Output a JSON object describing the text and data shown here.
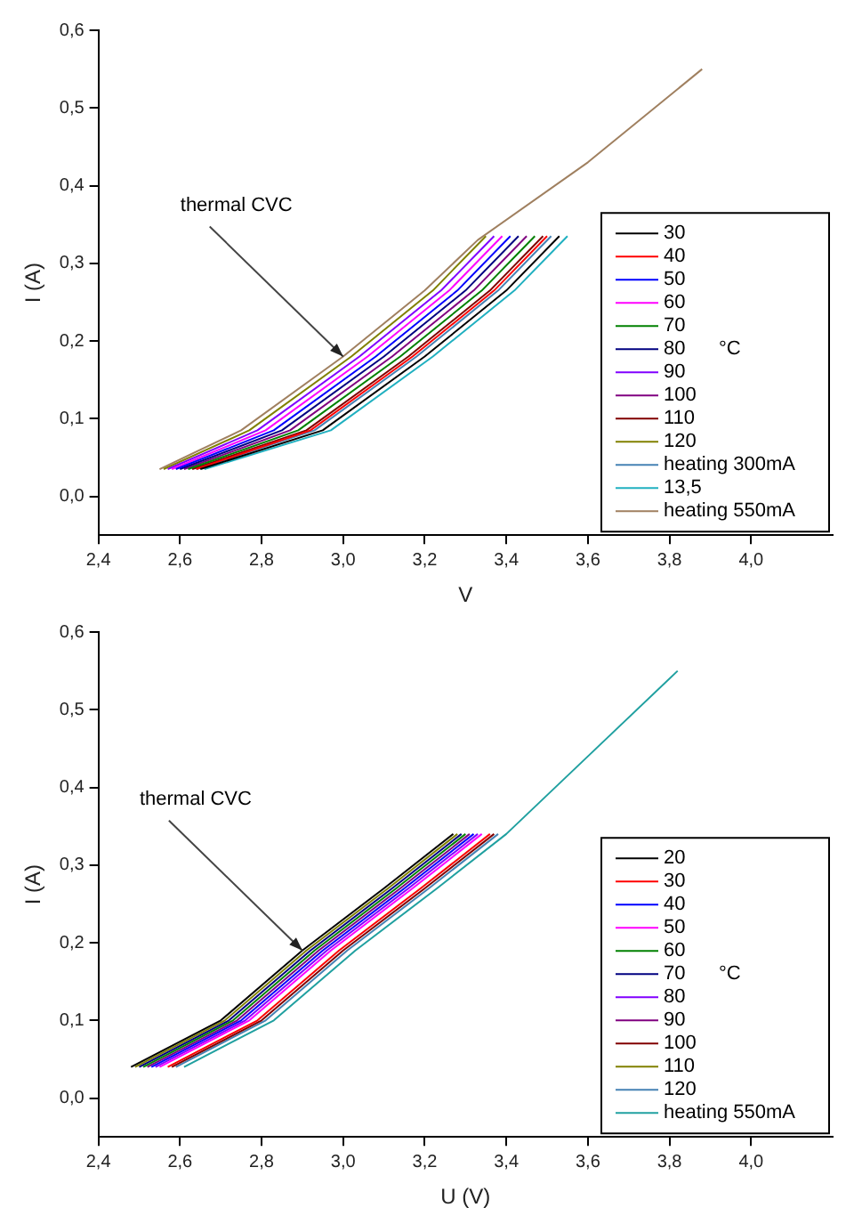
{
  "chart_data": [
    {
      "type": "line",
      "xlabel": "V",
      "ylabel": "I (A)",
      "legend": "bottom right",
      "legend_title": "°C",
      "marker": "none",
      "grid": false,
      "xlim": [
        2.4,
        4.2
      ],
      "ylim": [
        -0.05,
        0.6
      ],
      "xticks": [
        {
          "value": 2.4,
          "label": "2,4"
        },
        {
          "value": 2.6,
          "label": "2,6"
        },
        {
          "value": 2.8,
          "label": "2,8"
        },
        {
          "value": 3.0,
          "label": "3,0"
        },
        {
          "value": 3.2,
          "label": "3,2"
        },
        {
          "value": 3.4,
          "label": "3,4"
        },
        {
          "value": 3.6,
          "label": "3,6"
        },
        {
          "value": 3.8,
          "label": "3,8"
        },
        {
          "value": 4.0,
          "label": "4,0"
        }
      ],
      "yticks": [
        {
          "value": 0,
          "label": "0,0"
        },
        {
          "value": 0.1,
          "label": "0,1"
        },
        {
          "value": 0.2,
          "label": "0,2"
        },
        {
          "value": 0.3,
          "label": "0,3"
        },
        {
          "value": 0.4,
          "label": "0,4"
        },
        {
          "value": 0.5,
          "label": "0,5"
        },
        {
          "value": 0.6,
          "label": "0,6"
        }
      ],
      "annotations": [
        {
          "text": "thermal CVC",
          "x": 3.0,
          "y": 0.18
        }
      ],
      "series": [
        {
          "name": "30",
          "color": "#000000",
          "x": [
            2.65,
            2.95,
            3.2,
            3.4,
            3.53
          ],
          "values": [
            0.035,
            0.085,
            0.18,
            0.265,
            0.335
          ]
        },
        {
          "name": "40",
          "color": "#ff0000",
          "x": [
            2.64,
            2.92,
            3.17,
            3.37,
            3.5
          ],
          "values": [
            0.035,
            0.085,
            0.18,
            0.265,
            0.335
          ]
        },
        {
          "name": "50",
          "color": "#0000ff",
          "x": [
            2.59,
            2.83,
            3.08,
            3.28,
            3.41
          ],
          "values": [
            0.035,
            0.085,
            0.18,
            0.265,
            0.335
          ]
        },
        {
          "name": "60",
          "color": "#ff00ff",
          "x": [
            2.58,
            2.81,
            3.06,
            3.26,
            3.39
          ],
          "values": [
            0.035,
            0.085,
            0.18,
            0.265,
            0.335
          ]
        },
        {
          "name": "70",
          "color": "#008000",
          "x": [
            2.62,
            2.89,
            3.14,
            3.34,
            3.47
          ],
          "values": [
            0.035,
            0.085,
            0.18,
            0.265,
            0.335
          ]
        },
        {
          "name": "80",
          "color": "#000080",
          "x": [
            2.6,
            2.85,
            3.1,
            3.3,
            3.43
          ],
          "values": [
            0.035,
            0.085,
            0.18,
            0.265,
            0.335
          ]
        },
        {
          "name": "90",
          "color": "#8000ff",
          "x": [
            2.57,
            2.79,
            3.04,
            3.24,
            3.37
          ],
          "values": [
            0.035,
            0.085,
            0.18,
            0.265,
            0.335
          ]
        },
        {
          "name": "100",
          "color": "#800080",
          "x": [
            2.61,
            2.87,
            3.12,
            3.32,
            3.45
          ],
          "values": [
            0.035,
            0.085,
            0.18,
            0.265,
            0.335
          ]
        },
        {
          "name": "110",
          "color": "#800000",
          "x": [
            2.63,
            2.91,
            3.16,
            3.36,
            3.49
          ],
          "values": [
            0.035,
            0.085,
            0.18,
            0.265,
            0.335
          ]
        },
        {
          "name": "120",
          "color": "#808000",
          "x": [
            2.56,
            2.77,
            3.02,
            3.22,
            3.35
          ],
          "values": [
            0.035,
            0.085,
            0.18,
            0.265,
            0.335
          ]
        },
        {
          "name": "heating 300mA",
          "color": "#4682b4",
          "x": [
            2.64,
            2.93,
            3.18,
            3.38,
            3.51
          ],
          "values": [
            0.035,
            0.085,
            0.18,
            0.265,
            0.335
          ]
        },
        {
          "name": "13,5",
          "color": "#20b0c0",
          "x": [
            2.66,
            2.97,
            3.22,
            3.42,
            3.55
          ],
          "values": [
            0.035,
            0.085,
            0.18,
            0.265,
            0.335
          ]
        },
        {
          "name": "heating 550mA",
          "color": "#a08060",
          "x": [
            2.55,
            2.75,
            3.0,
            3.2,
            3.33,
            3.6,
            3.88
          ],
          "values": [
            0.035,
            0.085,
            0.18,
            0.265,
            0.33,
            0.43,
            0.55
          ]
        }
      ]
    },
    {
      "type": "line",
      "xlabel": "U (V)",
      "ylabel": "I (A)",
      "legend": "bottom right",
      "legend_title": "°C",
      "marker": "none",
      "grid": false,
      "xlim": [
        2.4,
        4.2
      ],
      "ylim": [
        -0.05,
        0.6
      ],
      "xticks": [
        {
          "value": 2.4,
          "label": "2,4"
        },
        {
          "value": 2.6,
          "label": "2,6"
        },
        {
          "value": 2.8,
          "label": "2,8"
        },
        {
          "value": 3.0,
          "label": "3,0"
        },
        {
          "value": 3.2,
          "label": "3,2"
        },
        {
          "value": 3.4,
          "label": "3,4"
        },
        {
          "value": 3.6,
          "label": "3,6"
        },
        {
          "value": 3.8,
          "label": "3,8"
        },
        {
          "value": 4.0,
          "label": "4,0"
        }
      ],
      "yticks": [
        {
          "value": 0,
          "label": "0,0"
        },
        {
          "value": 0.1,
          "label": "0,1"
        },
        {
          "value": 0.2,
          "label": "0,2"
        },
        {
          "value": 0.3,
          "label": "0,3"
        },
        {
          "value": 0.4,
          "label": "0,4"
        },
        {
          "value": 0.5,
          "label": "0,5"
        },
        {
          "value": 0.6,
          "label": "0,6"
        }
      ],
      "annotations": [
        {
          "text": "thermal CVC",
          "x": 2.9,
          "y": 0.19
        }
      ],
      "series": [
        {
          "name": "20",
          "color": "#000000",
          "x": [
            2.48,
            2.7,
            2.9,
            3.1,
            3.27
          ],
          "values": [
            0.04,
            0.1,
            0.19,
            0.27,
            0.34
          ]
        },
        {
          "name": "30",
          "color": "#ff0000",
          "x": [
            2.57,
            2.79,
            2.99,
            3.19,
            3.36
          ],
          "values": [
            0.04,
            0.1,
            0.19,
            0.27,
            0.34
          ]
        },
        {
          "name": "40",
          "color": "#0000ff",
          "x": [
            2.53,
            2.75,
            2.95,
            3.15,
            3.32
          ],
          "values": [
            0.04,
            0.1,
            0.19,
            0.27,
            0.34
          ]
        },
        {
          "name": "50",
          "color": "#ff00ff",
          "x": [
            2.55,
            2.77,
            2.97,
            3.17,
            3.34
          ],
          "values": [
            0.04,
            0.1,
            0.19,
            0.27,
            0.34
          ]
        },
        {
          "name": "60",
          "color": "#008000",
          "x": [
            2.51,
            2.73,
            2.93,
            3.13,
            3.3
          ],
          "values": [
            0.04,
            0.1,
            0.19,
            0.27,
            0.34
          ]
        },
        {
          "name": "70",
          "color": "#000080",
          "x": [
            2.5,
            2.72,
            2.92,
            3.12,
            3.29
          ],
          "values": [
            0.04,
            0.1,
            0.19,
            0.27,
            0.34
          ]
        },
        {
          "name": "80",
          "color": "#8000ff",
          "x": [
            2.54,
            2.76,
            2.96,
            3.16,
            3.33
          ],
          "values": [
            0.04,
            0.1,
            0.19,
            0.27,
            0.34
          ]
        },
        {
          "name": "90",
          "color": "#800080",
          "x": [
            2.52,
            2.74,
            2.94,
            3.14,
            3.31
          ],
          "values": [
            0.04,
            0.1,
            0.19,
            0.27,
            0.34
          ]
        },
        {
          "name": "100",
          "color": "#800000",
          "x": [
            2.58,
            2.8,
            3.0,
            3.2,
            3.37
          ],
          "values": [
            0.04,
            0.1,
            0.19,
            0.27,
            0.34
          ]
        },
        {
          "name": "110",
          "color": "#808000",
          "x": [
            2.49,
            2.71,
            2.91,
            3.11,
            3.28
          ],
          "values": [
            0.04,
            0.1,
            0.19,
            0.27,
            0.34
          ]
        },
        {
          "name": "120",
          "color": "#4682b4",
          "x": [
            2.59,
            2.81,
            3.01,
            3.21,
            3.38
          ],
          "values": [
            0.04,
            0.1,
            0.19,
            0.27,
            0.34
          ]
        },
        {
          "name": "heating 550mA",
          "color": "#20a0a0",
          "x": [
            2.61,
            2.83,
            3.03,
            3.23,
            3.4,
            3.6,
            3.82
          ],
          "values": [
            0.04,
            0.1,
            0.19,
            0.27,
            0.34,
            0.44,
            0.55
          ]
        }
      ]
    }
  ]
}
